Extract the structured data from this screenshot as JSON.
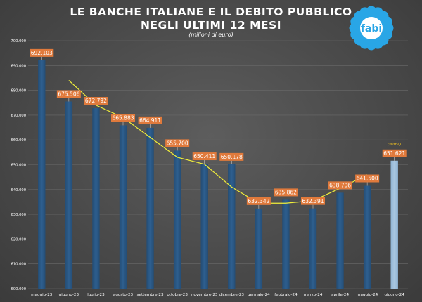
{
  "header": {
    "title_line1": "LE BANCHE ITALIANE E IL DEBITO PUBBLICO",
    "title_line2": "NEGLI ULTIMI 12 MESI",
    "subtitle": "(milioni di euro)"
  },
  "logo": {
    "text": "fabi",
    "icon": "flower-logo-icon",
    "petal_color": "#29a6e6",
    "center_color": "#ffffff"
  },
  "chart_data": {
    "type": "bar",
    "categories": [
      "maggio-23",
      "giugno-23",
      "luglio-23",
      "agosto-23",
      "settembre-23",
      "ottobre-23",
      "novembre-23",
      "dicembre-23",
      "gennaio-24",
      "febbraio-24",
      "marzo-24",
      "aprile-24",
      "maggio-24",
      "giugno-24"
    ],
    "values": [
      692103,
      675506,
      672792,
      665883,
      664911,
      655700,
      650411,
      650178,
      632342,
      635862,
      632391,
      638706,
      641500,
      651621
    ],
    "value_labels": [
      "692.103",
      "675.506",
      "672.792",
      "665.883",
      "664.911",
      "655.700",
      "650.411",
      "650.178",
      "632.342",
      "635.862",
      "632.391",
      "638.706",
      "641.500",
      "651.621"
    ],
    "estimate_note": "(stima)",
    "estimate_index": 13,
    "ylim": [
      600000,
      700000
    ],
    "yticks": [
      600000,
      610000,
      620000,
      630000,
      640000,
      650000,
      660000,
      670000,
      680000,
      690000,
      700000
    ],
    "ytick_labels": [
      "600.000",
      "610.000",
      "620.000",
      "630.000",
      "640.000",
      "650.000",
      "660.000",
      "670.000",
      "680.000",
      "690.000",
      "700.000"
    ],
    "trend_line": [
      684000,
      674000,
      669000,
      661000,
      653000,
      650200,
      641000,
      634500,
      634500,
      635500,
      640500,
      646000
    ],
    "trend_start_index": 1,
    "grid": true,
    "colors": {
      "bar": "#2e5f8f",
      "bar_estimate": "#a9c7e0",
      "label_box": "#e07a3c",
      "label_text": "#ffffff",
      "trend": "#f0ee3a",
      "estimate_note": "#f0c020",
      "axis_text": "#ffffff",
      "grid": "#6a6a6a"
    }
  }
}
